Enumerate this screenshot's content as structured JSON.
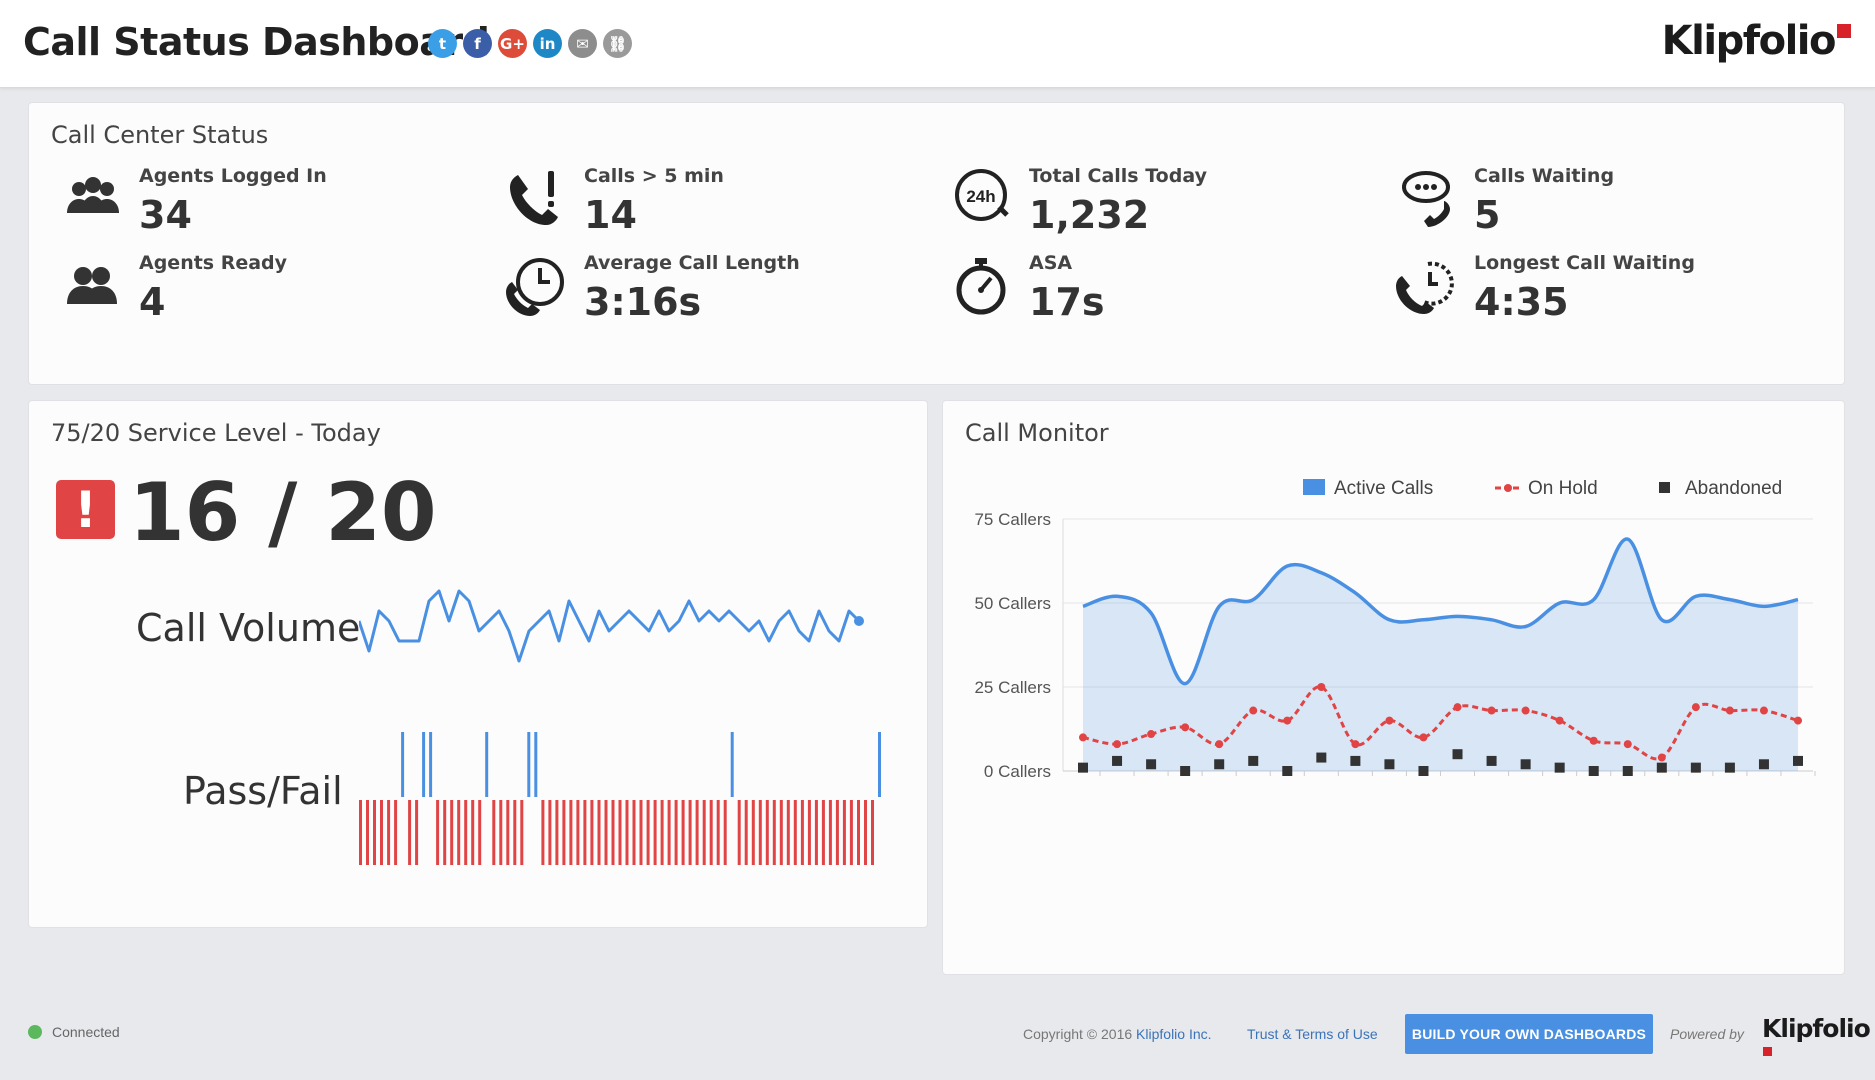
{
  "header": {
    "title": "Call Status Dashboard",
    "social": [
      {
        "name": "twitter-icon",
        "glyph": "t",
        "color": "#3b9fe8"
      },
      {
        "name": "facebook-icon",
        "glyph": "f",
        "color": "#3b5ea8"
      },
      {
        "name": "googleplus-icon",
        "glyph": "G+",
        "color": "#dd4b39"
      },
      {
        "name": "linkedin-icon",
        "glyph": "in",
        "color": "#1e88c7"
      },
      {
        "name": "email-icon",
        "glyph": "✉",
        "color": "#8d8d8d"
      },
      {
        "name": "link-icon",
        "glyph": "⛓",
        "color": "#9a9a9a"
      }
    ],
    "logo": "Klipfolio"
  },
  "call_center_status": {
    "title": "Call Center Status",
    "metrics": [
      {
        "label": "Agents Logged In",
        "value": "34",
        "icon": "agents-group-icon"
      },
      {
        "label": "Calls > 5 min",
        "value": "14",
        "icon": "phone-alert-icon"
      },
      {
        "label": "Total Calls Today",
        "value": "1,232",
        "icon": "phone-24h-icon"
      },
      {
        "label": "Calls Waiting",
        "value": "5",
        "icon": "phone-chat-icon"
      },
      {
        "label": "Agents Ready",
        "value": "4",
        "icon": "agents-ready-icon"
      },
      {
        "label": "Average Call Length",
        "value": "3:16s",
        "icon": "phone-clock-icon"
      },
      {
        "label": "ASA",
        "value": "17s",
        "icon": "stopwatch-icon"
      },
      {
        "label": "Longest Call Waiting",
        "value": "4:35",
        "icon": "phone-timer-icon"
      }
    ]
  },
  "service_level": {
    "title": "75/20 Service Level - Today",
    "alert_glyph": "!",
    "value": "16 / 20",
    "call_volume_label": "Call Volume",
    "pass_fail_label": "Pass/Fail",
    "colors": {
      "line": "#4a90e2",
      "pass": "#4a90e2",
      "fail": "#e04445"
    }
  },
  "call_monitor": {
    "title": "Call Monitor"
  },
  "chart_data": [
    {
      "type": "line",
      "title": "",
      "series": [
        {
          "values": [
            5,
            2,
            6,
            5,
            3,
            3,
            3,
            7,
            8,
            5,
            8,
            7,
            4,
            5,
            6,
            4,
            1,
            4,
            5,
            6,
            3,
            7,
            5,
            3,
            6,
            4,
            5,
            6,
            5,
            4,
            6,
            4,
            5,
            7,
            5,
            6,
            5,
            6,
            5,
            4,
            5,
            3,
            5,
            6,
            4,
            3,
            6,
            4,
            3,
            6,
            5
          ]
        }
      ]
    },
    {
      "type": "bar",
      "title": "",
      "x": [
        0,
        1,
        2,
        3,
        4,
        5,
        6,
        7,
        8,
        9,
        10,
        11,
        12,
        13,
        14,
        15,
        16,
        17,
        18,
        19,
        20,
        21,
        22,
        23,
        24,
        25,
        26,
        27,
        28,
        29,
        30,
        31,
        32,
        33,
        34,
        35,
        36,
        37,
        38,
        39,
        40,
        41,
        42,
        43,
        44,
        45,
        46,
        47,
        48,
        49,
        50,
        51,
        52,
        53,
        54,
        55,
        56,
        57,
        58,
        59,
        60,
        61,
        62,
        63,
        64,
        65,
        66,
        67,
        68,
        69,
        70,
        71,
        72,
        73,
        74
      ],
      "values": [
        -1,
        -1,
        -1,
        -1,
        -1,
        -1,
        1,
        -1,
        -1,
        1,
        1,
        -1,
        -1,
        -1,
        -1,
        -1,
        -1,
        -1,
        1,
        -1,
        -1,
        -1,
        -1,
        -1,
        1,
        1,
        -1,
        -1,
        -1,
        -1,
        -1,
        -1,
        -1,
        -1,
        -1,
        -1,
        -1,
        -1,
        -1,
        -1,
        -1,
        -1,
        -1,
        -1,
        -1,
        -1,
        -1,
        -1,
        -1,
        -1,
        -1,
        -1,
        -1,
        1,
        -1,
        -1,
        -1,
        -1,
        -1,
        -1,
        -1,
        -1,
        -1,
        -1,
        -1,
        -1,
        -1,
        -1,
        -1,
        -1,
        -1,
        -1,
        -1,
        -1,
        1
      ]
    },
    {
      "type": "area",
      "title": "",
      "categories": [
        "1",
        "2",
        "3",
        "4",
        "5",
        "6",
        "7",
        "8",
        "9",
        "10",
        "11",
        "12",
        "13",
        "14",
        "15",
        "16",
        "17",
        "18",
        "19",
        "20",
        "21",
        "22"
      ],
      "series": [
        {
          "name": "Active Calls",
          "type": "area",
          "color": "#4a90e2",
          "values": [
            49,
            52,
            47,
            26,
            49,
            51,
            61,
            59,
            53,
            45,
            45,
            46,
            45,
            43,
            50,
            51,
            69,
            45,
            52,
            51,
            49,
            51
          ]
        },
        {
          "name": "On Hold",
          "type": "line",
          "color": "#e04445",
          "values": [
            10,
            8,
            11,
            13,
            8,
            18,
            15,
            25,
            8,
            15,
            10,
            19,
            18,
            18,
            15,
            9,
            8,
            4,
            19,
            18,
            18,
            15
          ]
        },
        {
          "name": "Abandoned",
          "type": "scatter",
          "color": "#333333",
          "values": [
            1,
            3,
            2,
            0,
            2,
            3,
            0,
            4,
            3,
            2,
            0,
            5,
            3,
            2,
            1,
            0,
            0,
            1,
            1,
            1,
            2,
            3
          ]
        }
      ],
      "yticks": [
        "75 Callers",
        "50 Callers",
        "25 Callers",
        "0 Callers"
      ],
      "ylim": [
        0,
        75
      ],
      "legend": "top-right",
      "grid": true
    }
  ],
  "footer": {
    "status": "Connected",
    "copyright": "Copyright © 2016 ",
    "copyright_link": "Klipfolio Inc.",
    "trust": "Trust & Terms of Use",
    "cta": "BUILD YOUR OWN DASHBOARDS",
    "powered": "Powered by",
    "logo": "Klipfolio"
  }
}
